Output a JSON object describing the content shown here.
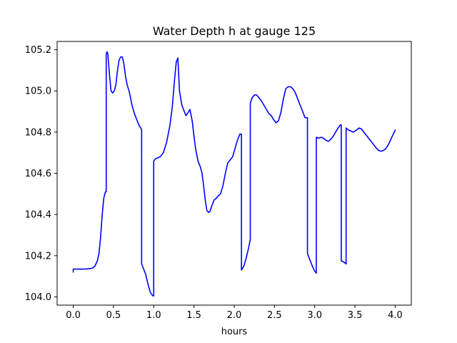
{
  "chart_data": {
    "type": "line",
    "title": "Water Depth h at gauge 125",
    "xlabel": "hours",
    "ylabel": "",
    "xlim": [
      -0.2,
      4.2
    ],
    "ylim": [
      103.96,
      105.24
    ],
    "xticks": [
      0.0,
      0.5,
      1.0,
      1.5,
      2.0,
      2.5,
      3.0,
      3.5,
      4.0
    ],
    "xtick_labels": [
      "0.0",
      "0.5",
      "1.0",
      "1.5",
      "2.0",
      "2.5",
      "3.0",
      "3.5",
      "4.0"
    ],
    "yticks": [
      104.0,
      104.2,
      104.4,
      104.6,
      104.8,
      105.0,
      105.2
    ],
    "ytick_labels": [
      "104.0",
      "104.2",
      "104.4",
      "104.6",
      "104.8",
      "105.0",
      "105.2"
    ],
    "grid": false,
    "legend": "none",
    "series": [
      {
        "color": "#0000ff",
        "x": [
          0.0,
          0.0,
          0.05,
          0.1,
          0.15,
          0.2,
          0.24,
          0.27,
          0.3,
          0.32,
          0.34,
          0.36,
          0.38,
          0.4,
          0.41,
          0.41,
          0.42,
          0.43,
          0.45,
          0.47,
          0.49,
          0.51,
          0.53,
          0.55,
          0.57,
          0.59,
          0.61,
          0.63,
          0.65,
          0.67,
          0.7,
          0.73,
          0.76,
          0.79,
          0.82,
          0.84,
          0.85,
          0.85,
          0.87,
          0.9,
          0.93,
          0.96,
          0.98,
          0.99,
          1.0,
          1.0,
          1.02,
          1.05,
          1.08,
          1.12,
          1.16,
          1.2,
          1.23,
          1.26,
          1.28,
          1.3,
          1.32,
          1.35,
          1.38,
          1.4,
          1.42,
          1.45,
          1.48,
          1.5,
          1.52,
          1.55,
          1.58,
          1.6,
          1.62,
          1.64,
          1.66,
          1.68,
          1.7,
          1.72,
          1.75,
          1.78,
          1.8,
          1.83,
          1.86,
          1.89,
          1.92,
          1.95,
          1.98,
          2.01,
          2.04,
          2.07,
          2.09,
          2.09,
          2.12,
          2.15,
          2.18,
          2.2,
          2.2,
          2.22,
          2.25,
          2.28,
          2.31,
          2.34,
          2.37,
          2.4,
          2.43,
          2.46,
          2.49,
          2.52,
          2.55,
          2.58,
          2.61,
          2.64,
          2.67,
          2.7,
          2.73,
          2.76,
          2.79,
          2.82,
          2.85,
          2.88,
          2.91,
          2.91,
          2.94,
          2.97,
          3.0,
          3.02,
          3.02,
          3.05,
          3.08,
          3.11,
          3.14,
          3.17,
          3.2,
          3.23,
          3.26,
          3.29,
          3.32,
          3.33,
          3.33,
          3.36,
          3.39,
          3.39,
          3.42,
          3.45,
          3.48,
          3.5,
          3.52,
          3.55,
          3.58,
          3.61,
          3.64,
          3.67,
          3.7,
          3.73,
          3.76,
          3.79,
          3.82,
          3.85,
          3.88,
          3.91,
          3.94,
          3.97,
          4.0
        ],
        "y": [
          104.12,
          104.135,
          104.135,
          104.135,
          104.135,
          104.137,
          104.14,
          104.15,
          104.175,
          104.21,
          104.29,
          104.4,
          104.48,
          104.51,
          104.51,
          105.18,
          105.19,
          105.18,
          105.08,
          105.0,
          104.99,
          105.0,
          105.03,
          105.1,
          105.15,
          105.165,
          105.165,
          105.13,
          105.07,
          105.03,
          104.99,
          104.93,
          104.89,
          104.86,
          104.83,
          104.82,
          104.81,
          104.16,
          104.14,
          104.11,
          104.06,
          104.02,
          104.01,
          104.005,
          104.005,
          104.66,
          104.67,
          104.675,
          104.68,
          104.7,
          104.75,
          104.83,
          104.92,
          105.06,
          105.14,
          105.16,
          105.0,
          104.93,
          104.9,
          104.88,
          104.89,
          104.91,
          104.85,
          104.78,
          104.72,
          104.66,
          104.63,
          104.6,
          104.54,
          104.47,
          104.42,
          104.41,
          104.415,
          104.44,
          104.47,
          104.48,
          104.49,
          104.5,
          104.54,
          104.6,
          104.65,
          104.665,
          104.68,
          104.72,
          104.76,
          104.79,
          104.79,
          104.13,
          104.15,
          104.19,
          104.24,
          104.28,
          104.94,
          104.965,
          104.98,
          104.98,
          104.965,
          104.95,
          104.93,
          104.91,
          104.89,
          104.88,
          104.86,
          104.845,
          104.855,
          104.895,
          104.96,
          105.01,
          105.02,
          105.02,
          105.01,
          104.99,
          104.96,
          104.93,
          104.9,
          104.87,
          104.87,
          104.21,
          104.18,
          104.15,
          104.125,
          104.115,
          104.775,
          104.77,
          104.775,
          104.77,
          104.76,
          104.755,
          104.765,
          104.78,
          104.8,
          104.82,
          104.835,
          104.835,
          104.175,
          104.17,
          104.16,
          104.82,
          104.81,
          104.805,
          104.8,
          104.805,
          104.81,
          104.82,
          104.815,
          104.8,
          104.785,
          104.77,
          104.755,
          104.74,
          104.725,
          104.712,
          104.707,
          104.71,
          104.718,
          104.735,
          104.76,
          104.785,
          104.81
        ]
      }
    ]
  }
}
